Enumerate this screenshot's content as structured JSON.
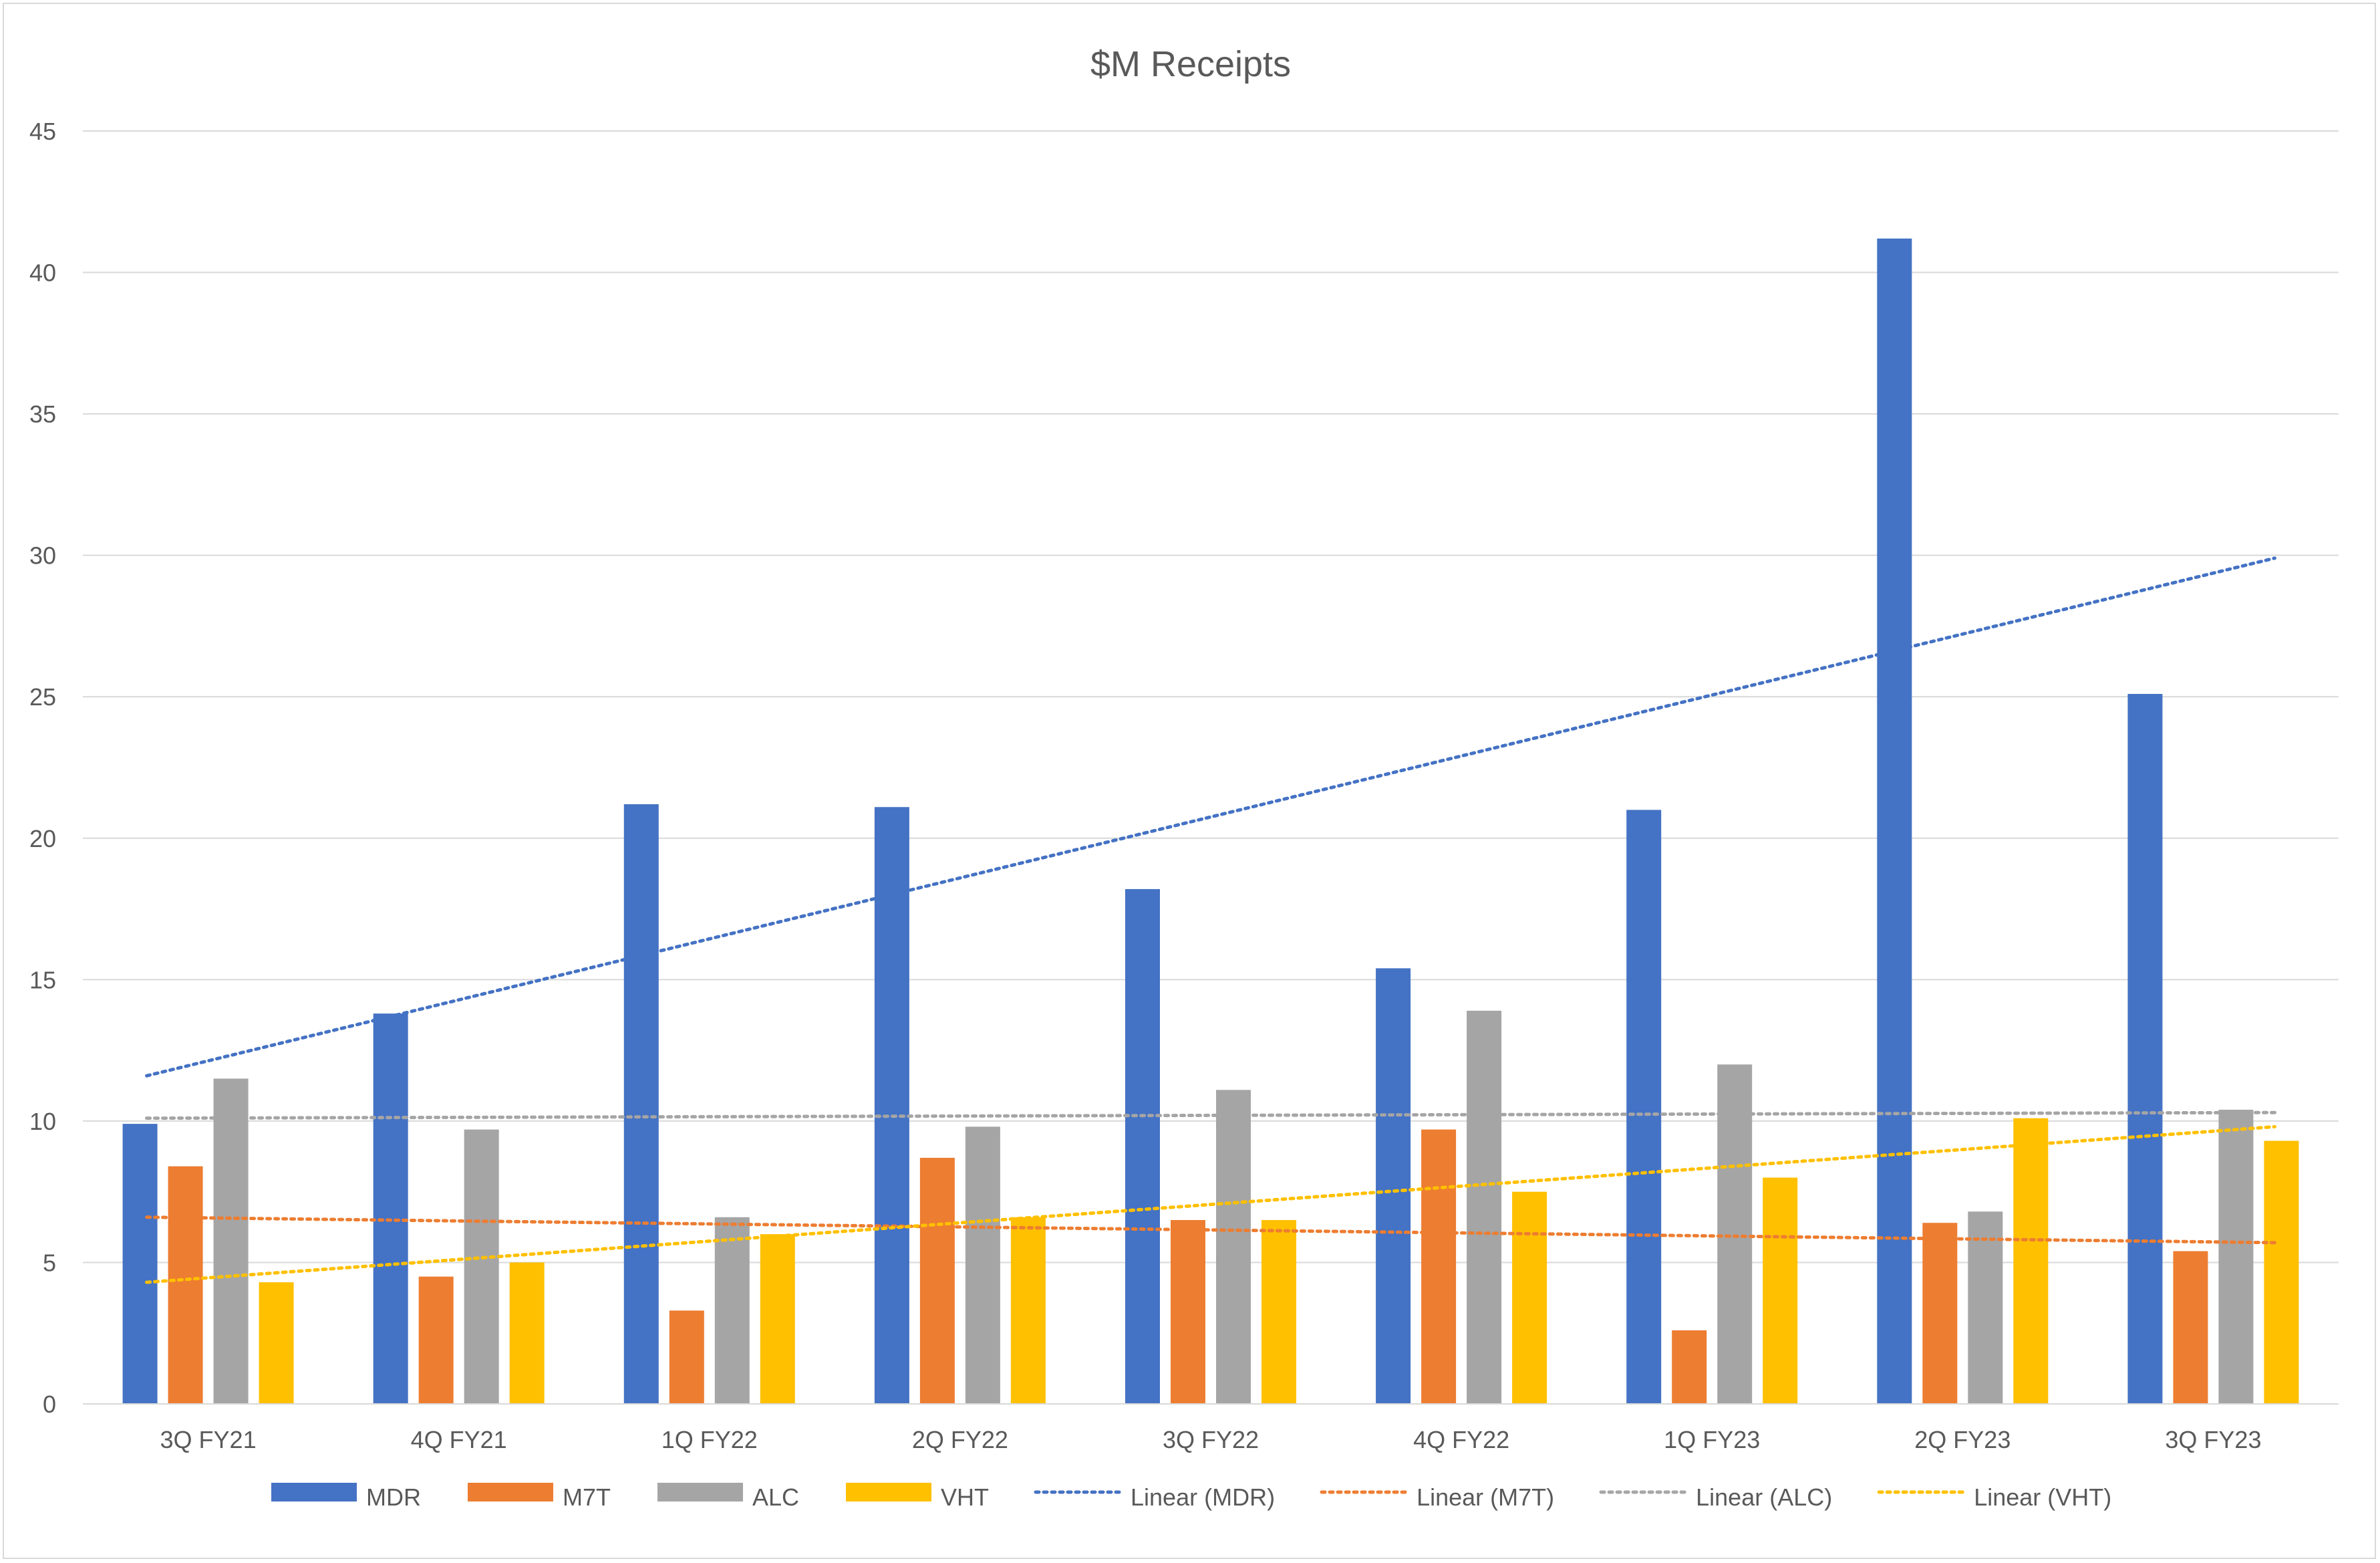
{
  "chart_data": {
    "type": "bar",
    "title": "$M Receipts",
    "xlabel": "",
    "ylabel": "",
    "ylim": [
      0,
      45
    ],
    "yticks": [
      0,
      5,
      10,
      15,
      20,
      25,
      30,
      35,
      40,
      45
    ],
    "grid": true,
    "legend_position": "bottom",
    "categories": [
      "3Q FY21",
      "4Q FY21",
      "1Q FY22",
      "2Q FY22",
      "3Q FY22",
      "4Q FY22",
      "1Q FY23",
      "2Q FY23",
      "3Q FY23"
    ],
    "series": [
      {
        "name": "MDR",
        "color": "#4472C4",
        "values": [
          9.9,
          13.8,
          21.2,
          21.1,
          18.2,
          15.4,
          21.0,
          41.2,
          25.1
        ]
      },
      {
        "name": "M7T",
        "color": "#ED7D31",
        "values": [
          8.4,
          4.5,
          3.3,
          8.7,
          6.5,
          9.7,
          2.6,
          6.4,
          5.4
        ]
      },
      {
        "name": "ALC",
        "color": "#A5A5A5",
        "values": [
          11.5,
          9.7,
          6.6,
          9.8,
          11.1,
          13.9,
          12.0,
          6.8,
          10.4
        ]
      },
      {
        "name": "VHT",
        "color": "#FFC000",
        "values": [
          4.3,
          5.0,
          6.0,
          6.6,
          6.5,
          7.5,
          8.0,
          10.1,
          9.3
        ]
      }
    ],
    "trendlines": [
      {
        "name": "Linear (MDR)",
        "color": "#4472C4",
        "type": "linear",
        "start": 11.6,
        "end": 29.9
      },
      {
        "name": "Linear (M7T)",
        "color": "#ED7D31",
        "type": "linear",
        "start": 6.6,
        "end": 5.7
      },
      {
        "name": "Linear (ALC)",
        "color": "#A5A5A5",
        "type": "linear",
        "start": 10.1,
        "end": 10.3
      },
      {
        "name": "Linear (VHT)",
        "color": "#FFC000",
        "type": "linear",
        "start": 4.3,
        "end": 9.8
      }
    ]
  }
}
